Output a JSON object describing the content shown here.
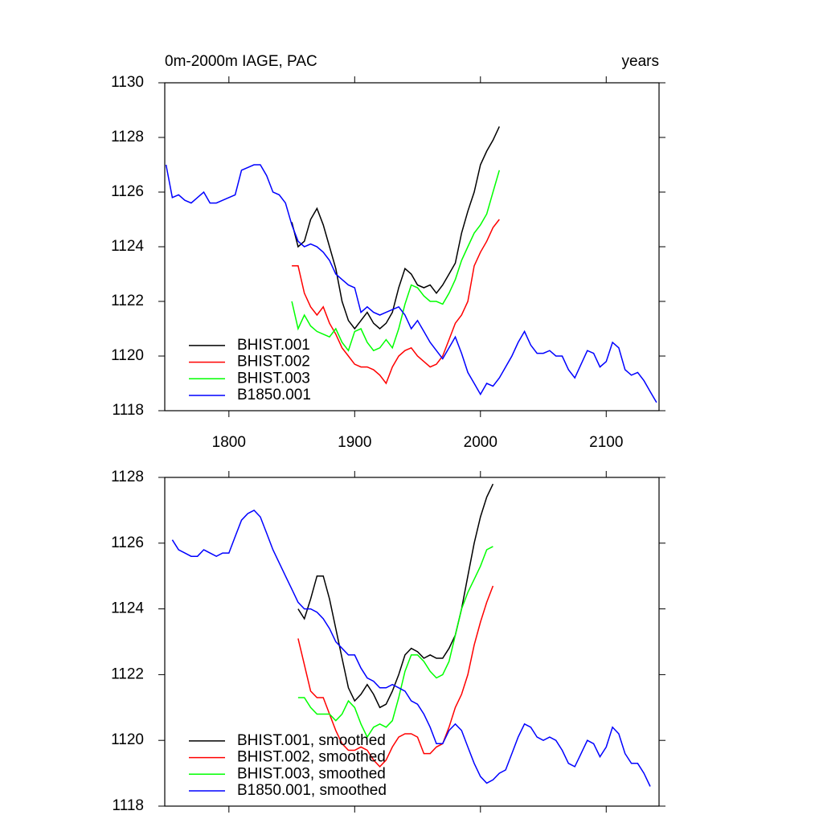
{
  "chart_data": [
    {
      "type": "line",
      "title": "0m-2000m IAGE, PAC",
      "right_title": "years",
      "xlim": [
        1749,
        2142
      ],
      "xticks": [
        1800,
        1900,
        2000,
        2100
      ],
      "xticklabels": true,
      "ylim": [
        1118,
        1130
      ],
      "yticks": [
        1118,
        1120,
        1122,
        1124,
        1126,
        1128,
        1130
      ],
      "legend": "lower left",
      "series": [
        {
          "name": "BHIST.001",
          "color": "#000000",
          "x": [
            1850,
            1855,
            1860,
            1865,
            1870,
            1875,
            1880,
            1885,
            1890,
            1895,
            1900,
            1905,
            1910,
            1915,
            1920,
            1925,
            1930,
            1935,
            1940,
            1945,
            1950,
            1955,
            1960,
            1965,
            1970,
            1975,
            1980,
            1985,
            1990,
            1995,
            2000,
            2005,
            2010,
            2015
          ],
          "values": [
            1124.9,
            1124.0,
            1124.2,
            1125.0,
            1125.4,
            1124.8,
            1124.0,
            1123.2,
            1122.0,
            1121.3,
            1121.0,
            1121.3,
            1121.6,
            1121.2,
            1121.0,
            1121.2,
            1121.6,
            1122.5,
            1123.2,
            1123.0,
            1122.6,
            1122.5,
            1122.6,
            1122.3,
            1122.6,
            1123.0,
            1123.4,
            1124.5,
            1125.3,
            1126.0,
            1127.0,
            1127.5,
            1127.9,
            1128.4
          ]
        },
        {
          "name": "BHIST.002",
          "color": "#ff0000",
          "x": [
            1850,
            1855,
            1860,
            1865,
            1870,
            1875,
            1880,
            1885,
            1890,
            1895,
            1900,
            1905,
            1910,
            1915,
            1920,
            1925,
            1930,
            1935,
            1940,
            1945,
            1950,
            1955,
            1960,
            1965,
            1970,
            1975,
            1980,
            1985,
            1990,
            1995,
            2000,
            2005,
            2010,
            2015
          ],
          "values": [
            1123.3,
            1123.3,
            1122.3,
            1121.8,
            1121.5,
            1121.8,
            1121.2,
            1120.8,
            1120.3,
            1120.0,
            1119.7,
            1119.6,
            1119.6,
            1119.5,
            1119.3,
            1119.0,
            1119.6,
            1120.0,
            1120.2,
            1120.3,
            1120.0,
            1119.8,
            1119.6,
            1119.7,
            1120.0,
            1120.6,
            1121.2,
            1121.5,
            1122.0,
            1123.3,
            1123.8,
            1124.2,
            1124.7,
            1125.0
          ]
        },
        {
          "name": "BHIST.003",
          "color": "#00ff00",
          "x": [
            1850,
            1855,
            1860,
            1865,
            1870,
            1875,
            1880,
            1885,
            1890,
            1895,
            1900,
            1905,
            1910,
            1915,
            1920,
            1925,
            1930,
            1935,
            1940,
            1945,
            1950,
            1955,
            1960,
            1965,
            1970,
            1975,
            1980,
            1985,
            1990,
            1995,
            2000,
            2005,
            2010,
            2015
          ],
          "values": [
            1122.0,
            1121.0,
            1121.5,
            1121.1,
            1120.9,
            1120.8,
            1120.7,
            1121.0,
            1120.5,
            1120.2,
            1120.9,
            1121.0,
            1120.5,
            1120.2,
            1120.3,
            1120.6,
            1120.3,
            1121.0,
            1121.9,
            1122.6,
            1122.5,
            1122.2,
            1122.0,
            1122.0,
            1121.9,
            1122.3,
            1122.8,
            1123.5,
            1124.0,
            1124.5,
            1124.8,
            1125.2,
            1126.0,
            1126.8
          ]
        },
        {
          "name": "B1850.001",
          "color": "#0000ff",
          "x": [
            1750,
            1755,
            1760,
            1765,
            1770,
            1775,
            1780,
            1785,
            1790,
            1795,
            1800,
            1805,
            1810,
            1815,
            1820,
            1825,
            1830,
            1835,
            1840,
            1845,
            1850,
            1855,
            1860,
            1865,
            1870,
            1875,
            1880,
            1885,
            1890,
            1895,
            1900,
            1905,
            1910,
            1915,
            1920,
            1925,
            1930,
            1935,
            1940,
            1945,
            1950,
            1955,
            1960,
            1965,
            1970,
            1975,
            1980,
            1985,
            1990,
            1995,
            2000,
            2005,
            2010,
            2015,
            2020,
            2025,
            2030,
            2035,
            2040,
            2045,
            2050,
            2055,
            2060,
            2065,
            2070,
            2075,
            2080,
            2085,
            2090,
            2095,
            2100,
            2105,
            2110,
            2115,
            2120,
            2125,
            2130,
            2135,
            2140
          ],
          "values": [
            1127.0,
            1125.8,
            1125.9,
            1125.7,
            1125.6,
            1125.8,
            1126.0,
            1125.6,
            1125.6,
            1125.7,
            1125.8,
            1125.9,
            1126.8,
            1126.9,
            1127.0,
            1127.0,
            1126.6,
            1126.0,
            1125.9,
            1125.6,
            1124.8,
            1124.2,
            1124.0,
            1124.1,
            1124.0,
            1123.8,
            1123.5,
            1123.0,
            1122.8,
            1122.6,
            1122.5,
            1121.6,
            1121.8,
            1121.6,
            1121.5,
            1121.6,
            1121.7,
            1121.8,
            1121.5,
            1121.0,
            1121.3,
            1120.9,
            1120.5,
            1120.2,
            1119.9,
            1120.3,
            1120.7,
            1120.1,
            1119.4,
            1119.0,
            1118.6,
            1119.0,
            1118.9,
            1119.2,
            1119.6,
            1120.0,
            1120.5,
            1120.9,
            1120.4,
            1120.1,
            1120.1,
            1120.2,
            1120.0,
            1120.0,
            1119.5,
            1119.2,
            1119.7,
            1120.2,
            1120.1,
            1119.6,
            1119.8,
            1120.5,
            1120.3,
            1119.5,
            1119.3,
            1119.4,
            1119.1,
            1118.7,
            1118.3
          ]
        }
      ]
    },
    {
      "type": "line",
      "xlim": [
        1749,
        2142
      ],
      "xticks": [
        1800,
        1900,
        2000,
        2100
      ],
      "xticklabels": false,
      "ylim": [
        1118,
        1128
      ],
      "yticks": [
        1118,
        1120,
        1122,
        1124,
        1126,
        1128
      ],
      "legend": "lower left",
      "series": [
        {
          "name": "BHIST.001, smoothed",
          "color": "#000000",
          "x": [
            1855,
            1860,
            1865,
            1870,
            1875,
            1880,
            1885,
            1890,
            1895,
            1900,
            1905,
            1910,
            1915,
            1920,
            1925,
            1930,
            1935,
            1940,
            1945,
            1950,
            1955,
            1960,
            1965,
            1970,
            1975,
            1980,
            1985,
            1990,
            1995,
            2000,
            2005,
            2010
          ],
          "values": [
            1124.0,
            1123.7,
            1124.3,
            1125.0,
            1125.0,
            1124.3,
            1123.4,
            1122.5,
            1121.6,
            1121.2,
            1121.4,
            1121.7,
            1121.4,
            1121.0,
            1121.1,
            1121.5,
            1122.0,
            1122.6,
            1122.8,
            1122.7,
            1122.5,
            1122.6,
            1122.5,
            1122.5,
            1122.8,
            1123.2,
            1124.0,
            1125.0,
            1126.0,
            1126.8,
            1127.4,
            1127.8
          ]
        },
        {
          "name": "BHIST.002, smoothed",
          "color": "#ff0000",
          "x": [
            1855,
            1860,
            1865,
            1870,
            1875,
            1880,
            1885,
            1890,
            1895,
            1900,
            1905,
            1910,
            1915,
            1920,
            1925,
            1930,
            1935,
            1940,
            1945,
            1950,
            1955,
            1960,
            1965,
            1970,
            1975,
            1980,
            1985,
            1990,
            1995,
            2000,
            2005,
            2010
          ],
          "values": [
            1123.1,
            1122.3,
            1121.5,
            1121.3,
            1121.3,
            1120.8,
            1120.3,
            1119.9,
            1119.7,
            1119.7,
            1119.8,
            1119.7,
            1119.4,
            1119.2,
            1119.4,
            1119.8,
            1120.1,
            1120.2,
            1120.2,
            1120.1,
            1119.6,
            1119.6,
            1119.8,
            1119.9,
            1120.4,
            1121.0,
            1121.4,
            1122.0,
            1122.9,
            1123.6,
            1124.2,
            1124.7
          ]
        },
        {
          "name": "BHIST.003, smoothed",
          "color": "#00ff00",
          "x": [
            1855,
            1860,
            1865,
            1870,
            1875,
            1880,
            1885,
            1890,
            1895,
            1900,
            1905,
            1910,
            1915,
            1920,
            1925,
            1930,
            1935,
            1940,
            1945,
            1950,
            1955,
            1960,
            1965,
            1970,
            1975,
            1980,
            1985,
            1990,
            1995,
            2000,
            2005,
            2010
          ],
          "values": [
            1121.3,
            1121.3,
            1121.0,
            1120.8,
            1120.8,
            1120.8,
            1120.6,
            1120.8,
            1121.2,
            1121.0,
            1120.5,
            1120.1,
            1120.4,
            1120.5,
            1120.4,
            1120.6,
            1121.3,
            1122.1,
            1122.6,
            1122.6,
            1122.4,
            1122.1,
            1121.9,
            1122.0,
            1122.4,
            1123.2,
            1124.0,
            1124.5,
            1124.9,
            1125.3,
            1125.8,
            1125.9
          ]
        },
        {
          "name": "B1850.001, smoothed",
          "color": "#0000ff",
          "x": [
            1755,
            1760,
            1765,
            1770,
            1775,
            1780,
            1785,
            1790,
            1795,
            1800,
            1805,
            1810,
            1815,
            1820,
            1825,
            1830,
            1835,
            1840,
            1845,
            1850,
            1855,
            1860,
            1865,
            1870,
            1875,
            1880,
            1885,
            1890,
            1895,
            1900,
            1905,
            1910,
            1915,
            1920,
            1925,
            1930,
            1935,
            1940,
            1945,
            1950,
            1955,
            1960,
            1965,
            1970,
            1975,
            1980,
            1985,
            1990,
            1995,
            2000,
            2005,
            2010,
            2015,
            2020,
            2025,
            2030,
            2035,
            2040,
            2045,
            2050,
            2055,
            2060,
            2065,
            2070,
            2075,
            2080,
            2085,
            2090,
            2095,
            2100,
            2105,
            2110,
            2115,
            2120,
            2125,
            2130,
            2135
          ],
          "values": [
            1126.1,
            1125.8,
            1125.7,
            1125.6,
            1125.6,
            1125.8,
            1125.7,
            1125.6,
            1125.7,
            1125.7,
            1126.2,
            1126.7,
            1126.9,
            1127.0,
            1126.8,
            1126.3,
            1125.8,
            1125.4,
            1125.0,
            1124.6,
            1124.2,
            1124.0,
            1124.0,
            1123.9,
            1123.7,
            1123.4,
            1123.0,
            1122.8,
            1122.6,
            1122.6,
            1122.2,
            1121.9,
            1121.8,
            1121.6,
            1121.6,
            1121.7,
            1121.6,
            1121.5,
            1121.2,
            1121.1,
            1120.8,
            1120.4,
            1119.9,
            1119.9,
            1120.3,
            1120.5,
            1120.3,
            1119.8,
            1119.3,
            1118.9,
            1118.7,
            1118.8,
            1119.0,
            1119.1,
            1119.6,
            1120.1,
            1120.5,
            1120.4,
            1120.1,
            1120.0,
            1120.1,
            1120.0,
            1119.7,
            1119.3,
            1119.2,
            1119.6,
            1120.0,
            1119.9,
            1119.5,
            1119.8,
            1120.4,
            1120.2,
            1119.6,
            1119.3,
            1119.3,
            1119.0,
            1118.6
          ]
        }
      ]
    }
  ]
}
